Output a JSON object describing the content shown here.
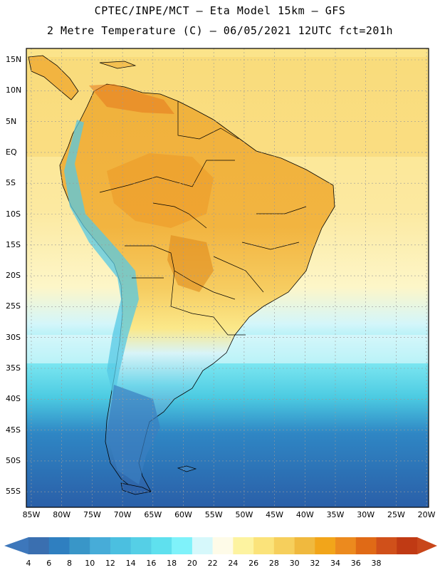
{
  "title": {
    "line1": "CPTEC/INPE/MCT –  Eta Model 15km – GFS",
    "line2": "2 Metre Temperature (C) – 06/05/2021 12UTC fct=201h"
  },
  "map": {
    "region": "South America",
    "lat_labels": [
      "15N",
      "10N",
      "5N",
      "EQ",
      "5S",
      "10S",
      "15S",
      "20S",
      "25S",
      "30S",
      "35S",
      "40S",
      "45S",
      "50S",
      "55S"
    ],
    "lon_labels": [
      "85W",
      "80W",
      "75W",
      "70W",
      "65W",
      "60W",
      "55W",
      "50W",
      "45W",
      "40W",
      "35W",
      "30W",
      "25W",
      "20W"
    ]
  },
  "colorbar": {
    "labels": [
      "4",
      "6",
      "8",
      "10",
      "12",
      "14",
      "16",
      "18",
      "20",
      "22",
      "24",
      "26",
      "28",
      "30",
      "32",
      "34",
      "36",
      "38"
    ],
    "colors": [
      "#3a6fb0",
      "#2f7fc0",
      "#3996c8",
      "#47acd8",
      "#4bbfe0",
      "#55cfe6",
      "#5fe0ee",
      "#7ff2fa",
      "#d6f8fb",
      "#fefbe8",
      "#fdf3a0",
      "#fbe37a",
      "#f6cf5c",
      "#f0b93e",
      "#f2a51a",
      "#ec8a1e",
      "#e06a16",
      "#d0501a",
      "#c03a14"
    ],
    "min_color": "#3d77bb",
    "max_color": "#c8461a"
  }
}
